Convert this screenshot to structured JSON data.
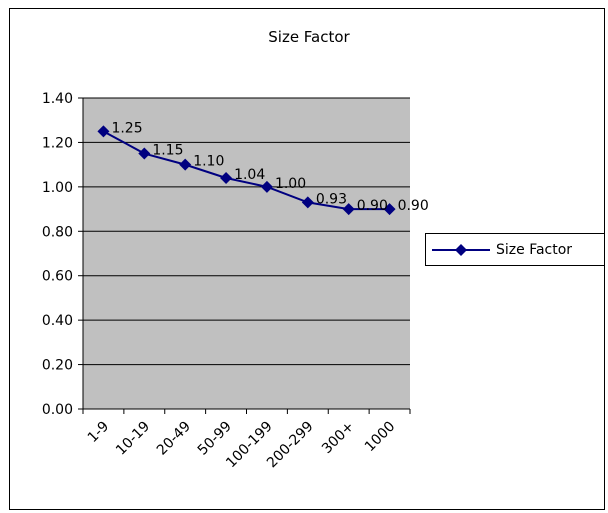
{
  "chart_data": {
    "type": "line",
    "title": "Size Factor",
    "categories": [
      "1-9",
      "10-19",
      "20-49",
      "50-99",
      "100-199",
      "200-299",
      "300+",
      "1000"
    ],
    "series": [
      {
        "name": "Size Factor",
        "values": [
          1.25,
          1.15,
          1.1,
          1.04,
          1.0,
          0.93,
          0.9,
          0.9
        ],
        "labels": [
          "1.25",
          "1.15",
          "1.10",
          "1.04",
          "1.00",
          "0.93",
          "0.90",
          "0.90"
        ],
        "color": "#000080"
      }
    ],
    "ylim": [
      0,
      1.4
    ],
    "yticks": [
      "0.00",
      "0.20",
      "0.40",
      "0.60",
      "0.80",
      "1.00",
      "1.20",
      "1.40"
    ],
    "grid": true,
    "plot_background": "#c0c0c0",
    "legend": "right"
  }
}
